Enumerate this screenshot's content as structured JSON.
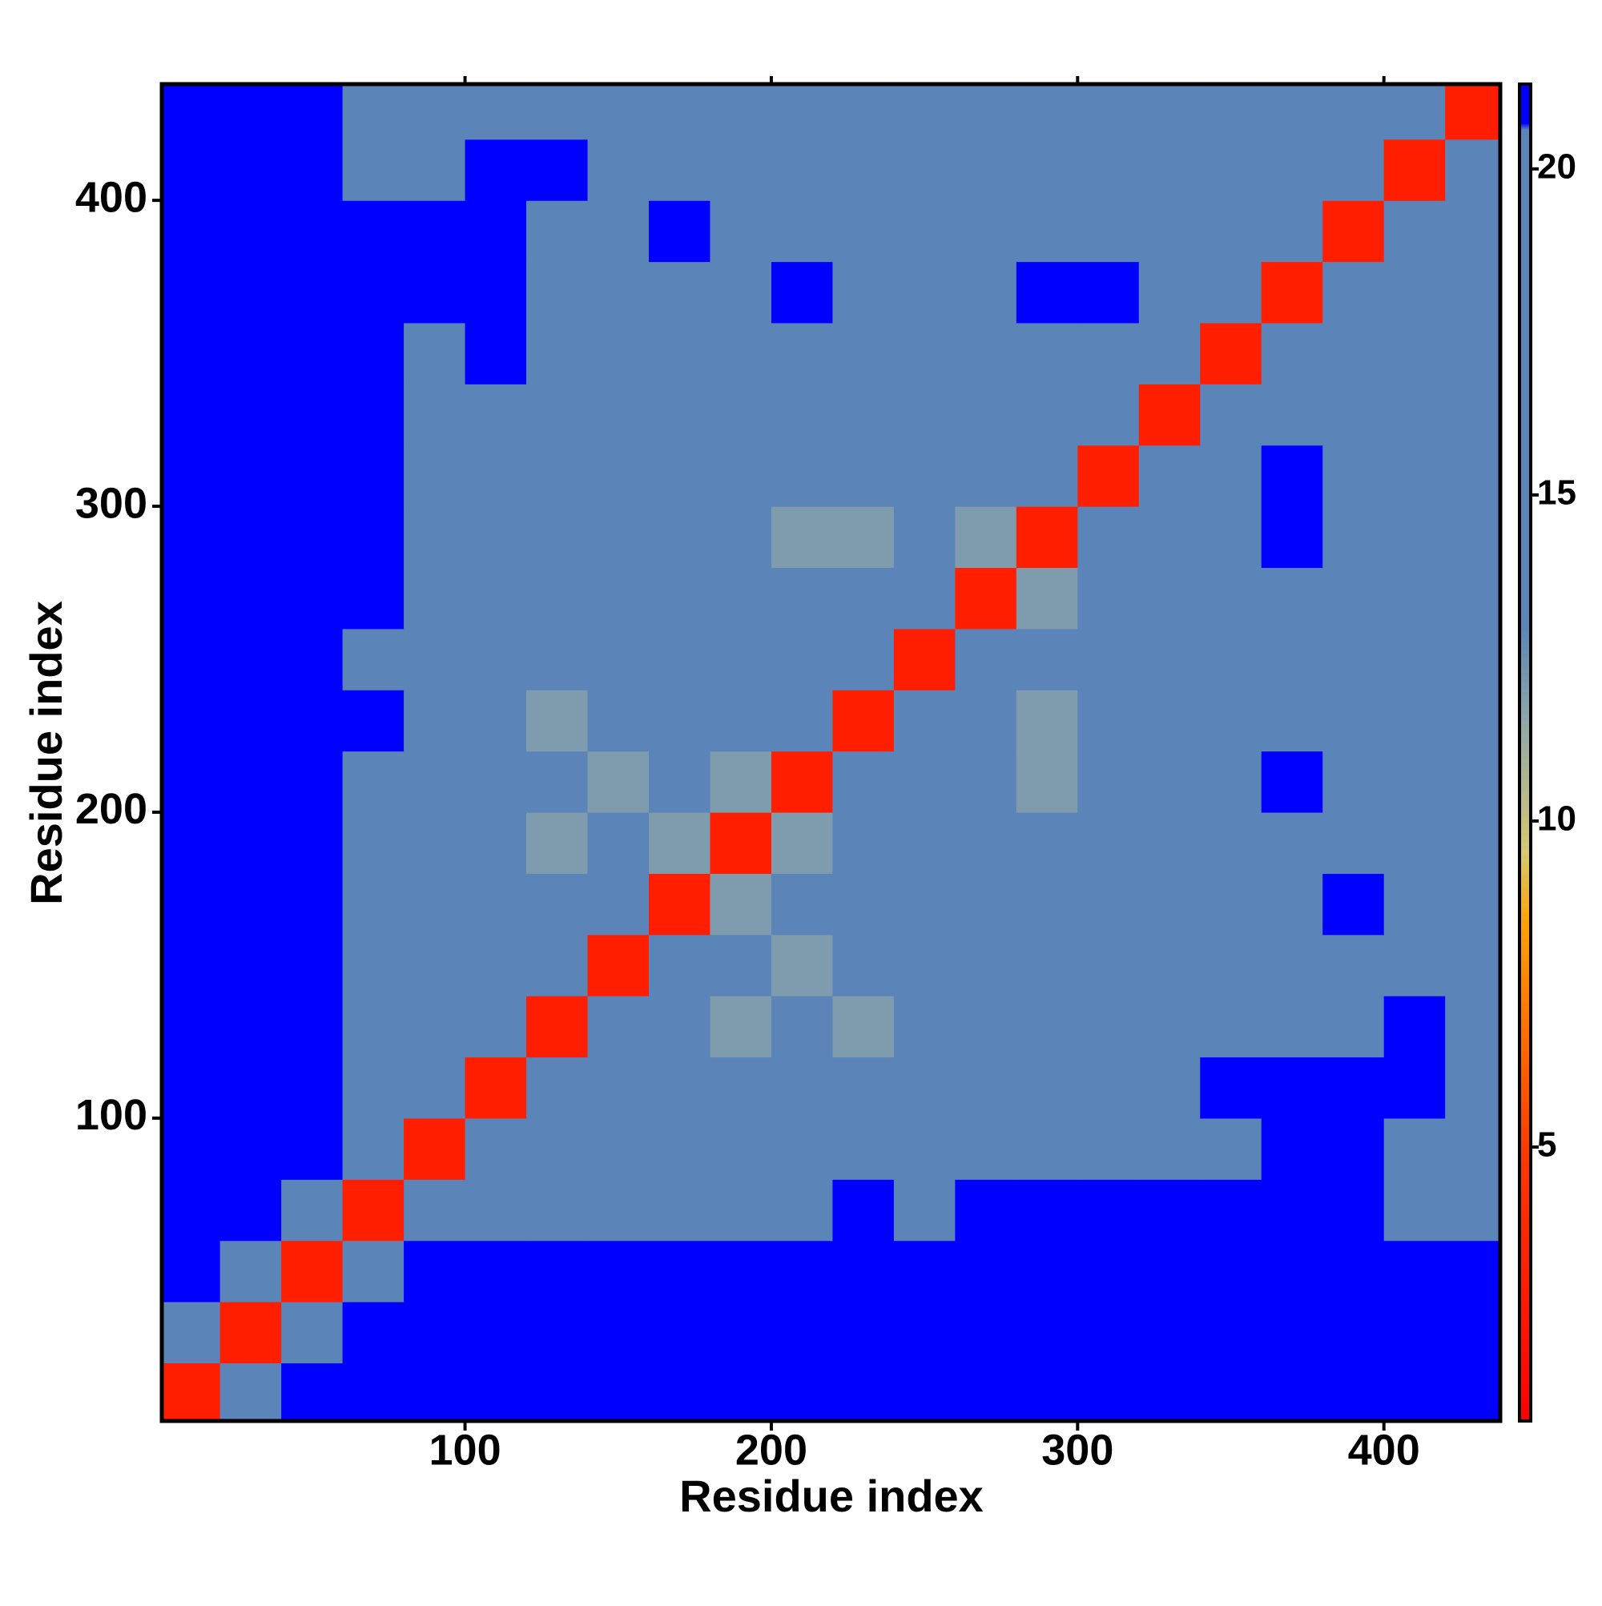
{
  "chart_data": {
    "type": "heatmap",
    "xlabel": "Residue index",
    "ylabel": "Residue index",
    "xbins": [
      1,
      20,
      40,
      60,
      80,
      100,
      120,
      140,
      160,
      180,
      200,
      220,
      240,
      260,
      280,
      300,
      320,
      340,
      360,
      380,
      400,
      420,
      438
    ],
    "ybins": [
      1,
      20,
      40,
      60,
      80,
      100,
      120,
      140,
      160,
      180,
      200,
      220,
      240,
      260,
      280,
      300,
      320,
      340,
      360,
      380,
      400,
      420,
      438
    ],
    "xlim": [
      1,
      438
    ],
    "ylim": [
      1,
      438
    ],
    "xticks": [
      100,
      200,
      300,
      400
    ],
    "yticks": [
      100,
      200,
      300,
      400
    ],
    "zlim": [
      0.8,
      21.3
    ],
    "zticks": [
      5,
      10,
      15,
      20
    ],
    "colorscale": [
      [
        0.8,
        "#ff0000"
      ],
      [
        5,
        "#ff3a00"
      ],
      [
        8.4,
        "#ffa000"
      ],
      [
        9.5,
        "#d8c870"
      ],
      [
        11.5,
        "#8fa8a8"
      ],
      [
        13,
        "#5b84b8"
      ],
      [
        20.6,
        "#5b84b8"
      ],
      [
        20.7,
        "#0000ff"
      ],
      [
        21.3,
        "#0000ff"
      ]
    ],
    "z": [
      [
        3,
        16,
        21,
        21,
        21,
        21,
        21,
        21,
        21,
        21,
        21,
        21,
        21,
        21,
        21,
        21,
        21,
        21,
        21,
        21,
        21,
        21
      ],
      [
        16,
        3,
        16,
        21,
        21,
        21,
        21,
        21,
        21,
        21,
        21,
        21,
        21,
        21,
        21,
        21,
        21,
        21,
        21,
        21,
        21,
        21
      ],
      [
        21,
        16,
        3,
        16,
        21,
        21,
        21,
        21,
        21,
        21,
        21,
        21,
        21,
        21,
        21,
        21,
        21,
        21,
        21,
        21,
        21,
        21
      ],
      [
        21,
        21,
        16,
        3,
        15,
        20,
        20,
        20,
        20,
        20,
        20,
        21,
        20,
        21,
        21,
        21,
        21,
        21,
        21,
        21,
        15,
        16
      ],
      [
        21,
        21,
        21,
        15,
        3,
        14,
        18,
        18,
        18,
        18,
        18,
        19,
        18,
        19,
        19,
        19,
        19,
        20,
        21,
        21,
        18,
        18
      ],
      [
        21,
        21,
        21,
        20,
        14,
        3,
        14,
        16,
        13,
        17,
        17,
        17,
        17,
        17,
        17,
        19,
        19,
        21,
        21,
        21,
        21,
        20
      ],
      [
        21,
        21,
        21,
        20,
        18,
        14,
        3,
        14,
        13,
        12,
        13,
        12,
        17,
        17,
        17,
        16,
        17,
        18,
        20,
        19,
        21,
        19
      ],
      [
        21,
        21,
        21,
        20,
        18,
        16,
        14,
        3,
        14,
        13,
        12,
        13,
        17,
        16,
        17,
        16,
        17,
        17,
        18,
        17,
        16,
        15
      ],
      [
        21,
        21,
        21,
        20,
        18,
        13,
        13,
        14,
        3,
        12,
        13,
        15,
        17,
        17,
        16,
        17,
        17,
        17,
        20,
        21,
        19,
        17
      ],
      [
        21,
        21,
        21,
        20,
        18,
        17,
        12,
        13,
        12,
        3,
        12,
        13,
        17,
        13,
        17,
        17,
        15,
        17,
        20,
        20,
        20,
        19
      ],
      [
        21,
        21,
        21,
        20,
        18,
        17,
        13,
        12,
        13,
        12,
        3,
        13,
        16,
        13,
        12,
        17,
        15,
        17,
        21,
        20,
        18,
        17
      ],
      [
        21,
        21,
        21,
        21,
        19,
        17,
        12,
        13,
        15,
        13,
        13,
        3,
        13,
        16,
        12,
        17,
        14,
        14,
        19,
        20,
        16,
        13
      ],
      [
        21,
        21,
        21,
        20,
        18,
        17,
        17,
        17,
        17,
        17,
        16,
        13,
        3,
        13,
        14,
        17,
        15,
        15,
        18,
        19,
        19,
        18
      ],
      [
        21,
        21,
        21,
        21,
        19,
        17,
        17,
        16,
        17,
        13,
        13,
        16,
        13,
        3,
        12,
        15,
        16,
        17,
        20,
        19,
        20,
        19
      ],
      [
        21,
        21,
        21,
        21,
        19,
        17,
        17,
        17,
        16,
        17,
        12,
        12,
        14,
        12,
        3,
        13,
        14,
        17,
        21,
        19,
        18,
        19
      ],
      [
        21,
        21,
        21,
        21,
        19,
        19,
        16,
        16,
        17,
        17,
        17,
        17,
        17,
        15,
        13,
        3,
        13,
        16,
        21,
        20,
        19,
        18
      ],
      [
        21,
        21,
        21,
        21,
        19,
        19,
        17,
        17,
        17,
        15,
        15,
        14,
        15,
        16,
        14,
        13,
        3,
        13,
        19,
        20,
        20,
        19
      ],
      [
        21,
        21,
        21,
        21,
        20,
        21,
        18,
        17,
        17,
        17,
        17,
        14,
        15,
        17,
        17,
        16,
        13,
        3,
        13,
        17,
        19,
        20
      ],
      [
        21,
        21,
        21,
        21,
        21,
        21,
        20,
        18,
        20,
        20,
        21,
        19,
        18,
        20,
        21,
        21,
        19,
        13,
        3,
        13,
        15,
        17
      ],
      [
        21,
        21,
        21,
        21,
        21,
        21,
        19,
        17,
        21,
        20,
        20,
        20,
        19,
        19,
        19,
        20,
        20,
        17,
        13,
        3,
        13,
        14
      ],
      [
        21,
        21,
        21,
        15,
        18,
        21,
        21,
        16,
        19,
        20,
        18,
        16,
        19,
        20,
        18,
        19,
        20,
        19,
        15,
        13,
        3,
        13
      ],
      [
        21,
        21,
        21,
        16,
        18,
        20,
        19,
        15,
        17,
        19,
        17,
        13,
        18,
        19,
        19,
        18,
        19,
        20,
        17,
        14,
        13,
        3
      ]
    ]
  }
}
